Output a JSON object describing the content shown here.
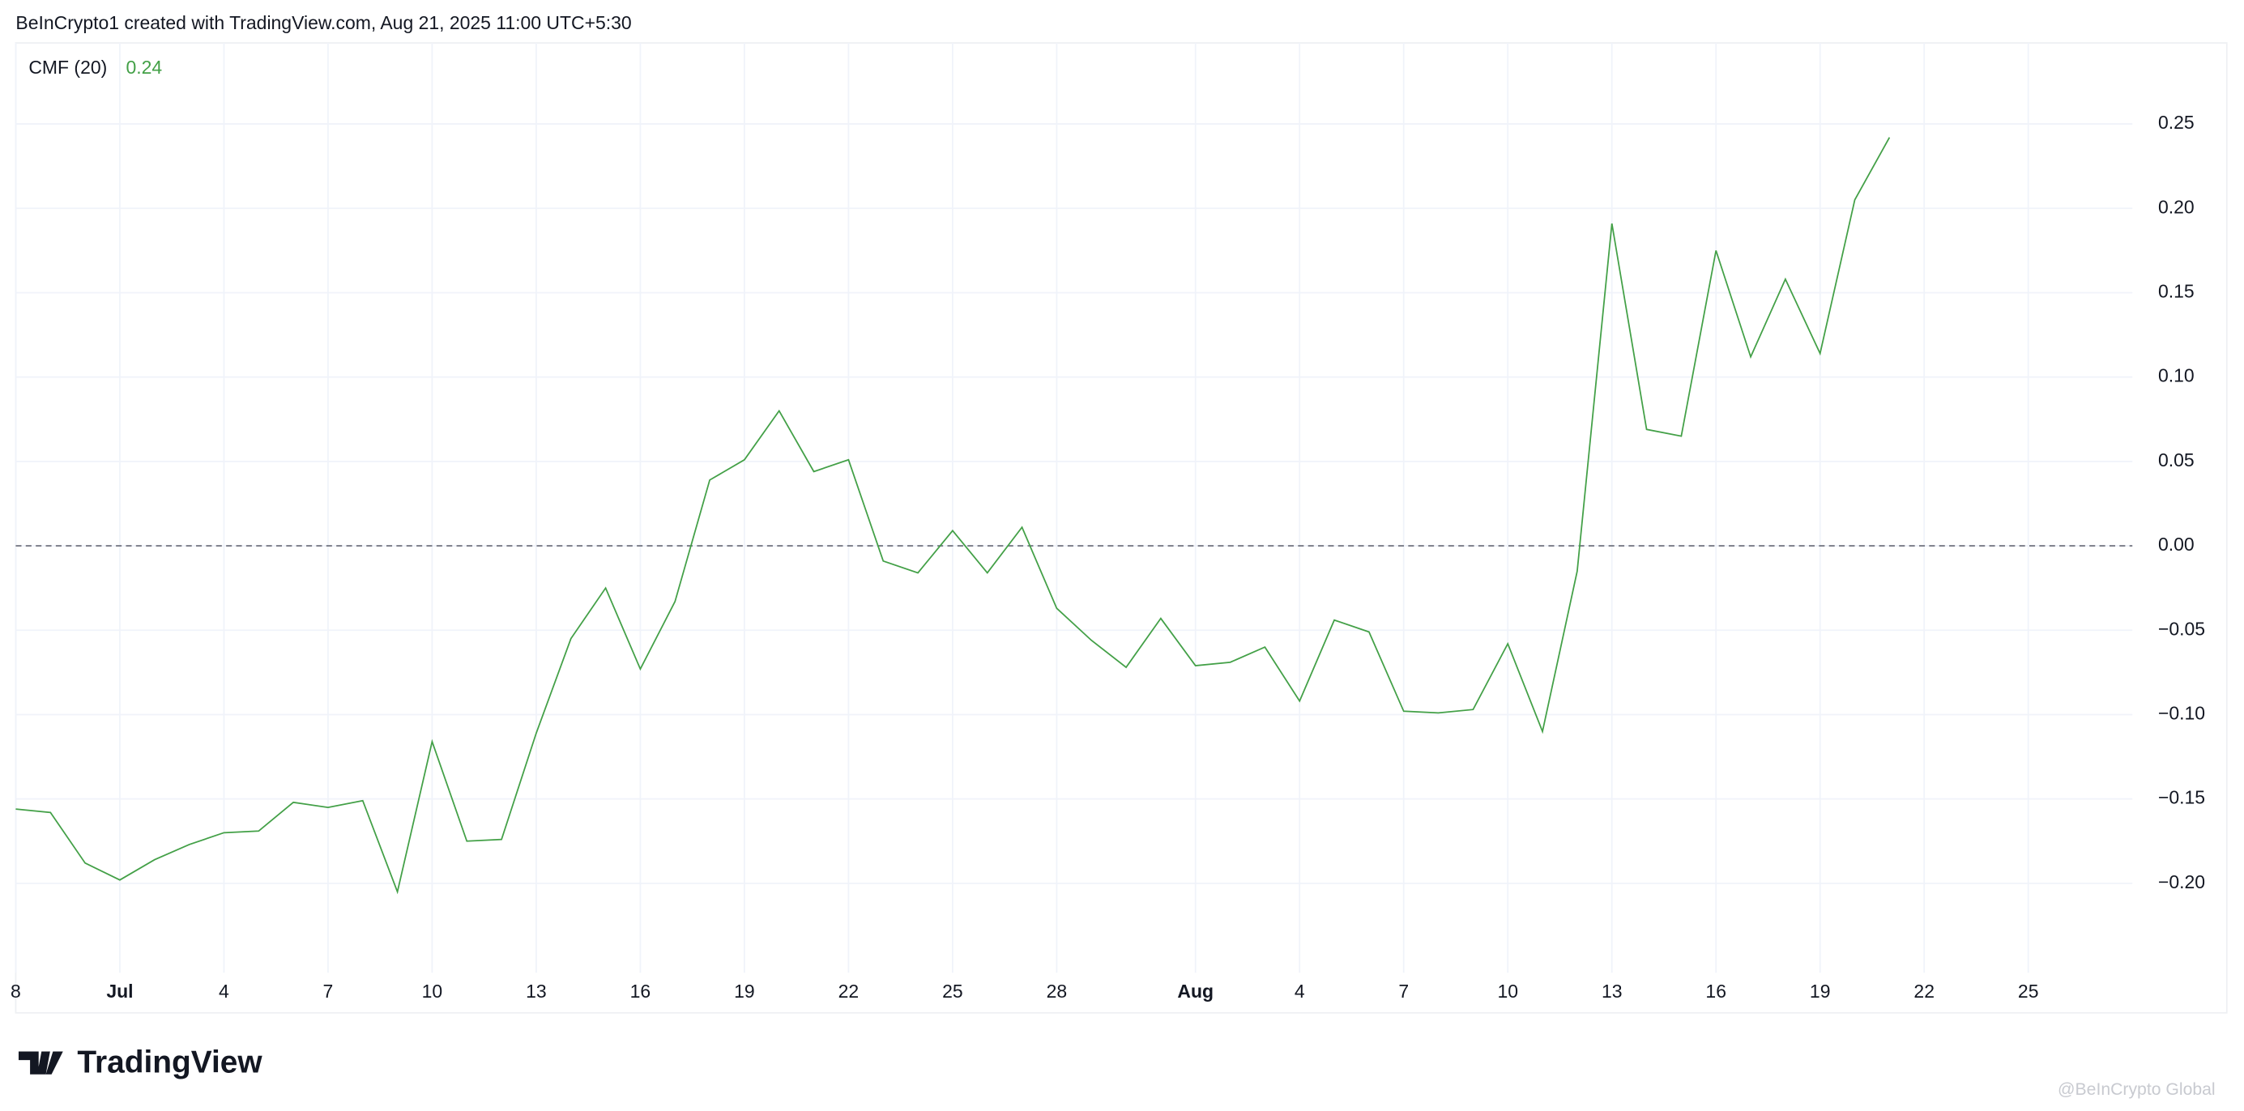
{
  "header": "BeInCrypto1 created with TradingView.com, Aug 21, 2025 11:00 UTC+5:30",
  "logo": "TradingView",
  "watermark": "@BeInCrypto Global",
  "chart_data": {
    "type": "line",
    "legend_label": "CMF (20)",
    "legend_value": 0.24,
    "hline": 0,
    "grid": true,
    "x": [
      "Jun 28",
      "Jun 29",
      "Jun 30",
      "Jul 1",
      "Jul 2",
      "Jul 3",
      "Jul 4",
      "Jul 5",
      "Jul 6",
      "Jul 7",
      "Jul 8",
      "Jul 9",
      "Jul 10",
      "Jul 11",
      "Jul 12",
      "Jul 13",
      "Jul 14",
      "Jul 15",
      "Jul 16",
      "Jul 17",
      "Jul 18",
      "Jul 19",
      "Jul 20",
      "Jul 21",
      "Jul 22",
      "Jul 23",
      "Jul 24",
      "Jul 25",
      "Jul 26",
      "Jul 27",
      "Jul 28",
      "Jul 29",
      "Jul 30",
      "Jul 31",
      "Aug 1",
      "Aug 2",
      "Aug 3",
      "Aug 4",
      "Aug 5",
      "Aug 6",
      "Aug 7",
      "Aug 8",
      "Aug 9",
      "Aug 10",
      "Aug 11",
      "Aug 12",
      "Aug 13",
      "Aug 14",
      "Aug 15",
      "Aug 16",
      "Aug 17",
      "Aug 18",
      "Aug 19",
      "Aug 20",
      "Aug 21"
    ],
    "series": [
      {
        "name": "CMF (20)",
        "color": "#43a047",
        "values": [
          -0.156,
          -0.158,
          -0.188,
          -0.198,
          -0.186,
          -0.177,
          -0.17,
          -0.169,
          -0.152,
          -0.155,
          -0.151,
          -0.205,
          -0.116,
          -0.175,
          -0.174,
          -0.111,
          -0.055,
          -0.025,
          -0.073,
          -0.033,
          0.039,
          0.051,
          0.08,
          0.044,
          0.051,
          -0.009,
          -0.016,
          0.009,
          -0.016,
          0.011,
          -0.037,
          -0.056,
          -0.072,
          -0.043,
          -0.071,
          -0.069,
          -0.06,
          -0.092,
          -0.044,
          -0.051,
          -0.098,
          -0.099,
          -0.097,
          -0.058,
          -0.11,
          -0.015,
          0.191,
          0.069,
          0.065,
          0.175,
          0.112,
          0.158,
          0.114,
          0.205,
          0.242
        ]
      }
    ],
    "xlim": [
      "Jun 28",
      "Aug 28"
    ],
    "xticks": [
      {
        "value": "Jun 28",
        "label": "8"
      },
      {
        "value": "Jul 1",
        "label": "Jul"
      },
      {
        "value": "Jul 4",
        "label": "4"
      },
      {
        "value": "Jul 7",
        "label": "7"
      },
      {
        "value": "Jul 10",
        "label": "10"
      },
      {
        "value": "Jul 13",
        "label": "13"
      },
      {
        "value": "Jul 16",
        "label": "16"
      },
      {
        "value": "Jul 19",
        "label": "19"
      },
      {
        "value": "Jul 22",
        "label": "22"
      },
      {
        "value": "Jul 25",
        "label": "25"
      },
      {
        "value": "Jul 28",
        "label": "28"
      },
      {
        "value": "Aug 1",
        "label": "Aug"
      },
      {
        "value": "Aug 4",
        "label": "4"
      },
      {
        "value": "Aug 7",
        "label": "7"
      },
      {
        "value": "Aug 10",
        "label": "10"
      },
      {
        "value": "Aug 13",
        "label": "13"
      },
      {
        "value": "Aug 16",
        "label": "16"
      },
      {
        "value": "Aug 19",
        "label": "19"
      },
      {
        "value": "Aug 22",
        "label": "22"
      },
      {
        "value": "Aug 25",
        "label": "25"
      }
    ],
    "ylim": [
      -0.253,
      0.298
    ],
    "yticks": [
      {
        "value": -0.2,
        "label": "−0.20"
      },
      {
        "value": -0.15,
        "label": "−0.15"
      },
      {
        "value": -0.1,
        "label": "−0.10"
      },
      {
        "value": -0.05,
        "label": "−0.05"
      },
      {
        "value": 0,
        "label": "0.00"
      },
      {
        "value": 0.05,
        "label": "0.05"
      },
      {
        "value": 0.1,
        "label": "0.10"
      },
      {
        "value": 0.15,
        "label": "0.15"
      },
      {
        "value": 0.2,
        "label": "0.20"
      },
      {
        "value": 0.25,
        "label": "0.25"
      }
    ]
  }
}
